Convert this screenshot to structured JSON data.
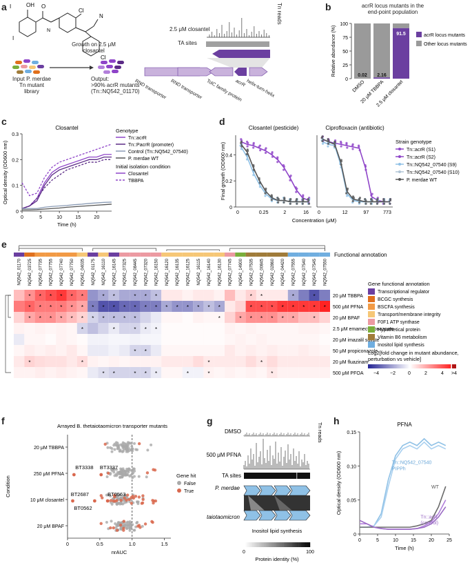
{
  "panels": {
    "a": "a",
    "b": "b",
    "c": "c",
    "d": "d",
    "e": "e",
    "f": "f",
    "g": "g",
    "h": "h"
  },
  "panel_a": {
    "growth_label_1": "Growth on 2.5 μM",
    "growth_label_2": "closantel",
    "input_1": "Input P. merdae",
    "input_2": "Tn mutant",
    "input_3": "library",
    "output_1": "Output:",
    "output_2": ">90% acrR mutants",
    "output_3": "(Tn::NQ542_01170)",
    "closantel_track": "2.5 μM closantel",
    "ta_sites": "TA sites",
    "tn_reads": "Tn reads",
    "genes": [
      "RND transporter",
      "RND transporter",
      "TolC family protein",
      "acrR",
      "helix-turn-helix"
    ]
  },
  "panel_b": {
    "title_1": "acrR locus mutants in the",
    "title_2": "end-point population",
    "ylabel": "Relative abundance (%)",
    "legend": [
      "acrR locus mutants",
      "Other locus mutants"
    ]
  },
  "panel_c": {
    "title": "Closantel",
    "xlabel": "Time (h)",
    "ylabel": "Optical density (OD600 nm)",
    "legend_genotype": "Genotype",
    "legend_items": [
      "Tn::acrR",
      "Tn::PacrR (promoter)",
      "Control (Tn::NQ542_07540)",
      "P. merdae WT"
    ],
    "legend_cond": "Initial isolation condition",
    "cond_items": [
      "Closantel",
      "TBBPA"
    ]
  },
  "panel_d": {
    "title_left": "Closantel (pesticide)",
    "title_right": "Ciprofloxacin (antibiotic)",
    "xlabel": "Concentration (μM)",
    "ylabel": "Final growth (OD600 nm)",
    "legend_title": "Strain genotype",
    "legend_items": [
      "Tn::acrR (S1)",
      "Tn::acrR (S2)",
      "Tn::NQ542_07540 (S9)",
      "Tn::NQ542_07540 (S10)",
      "P. merdae WT"
    ]
  },
  "panel_e": {
    "annotation_label": "Functional annotation",
    "columns": [
      "NQ542_01170",
      "NQ542_03725",
      "NQ542_07735",
      "NQ542_07755",
      "NQ542_07740",
      "NQ542_07750",
      "NQ542_04035",
      "NQ542_01175",
      "NQ542_16110",
      "NQ542_16145",
      "NQ542_07325",
      "NQ542_08445",
      "NQ542_07320",
      "NQ542_16150",
      "NQ542_16120",
      "NQ542_16135",
      "NQ542_16125",
      "NQ542_16115",
      "NQ542_16140",
      "NQ542_16130",
      "NQ542_07745",
      "NQ542_14900",
      "NQ542_07535",
      "NQ542_00845",
      "NQ542_02860",
      "NQ542_04420",
      "NQ542_07555",
      "NQ542_07540",
      "NQ542_07545",
      "NQ542_07550"
    ],
    "rows": [
      "20 μM TBBPA",
      "500 μM PFNA",
      "20 μM BPAF",
      "2.5 μM emamectin benzoate",
      "20 μM imazalil sulfate",
      "50 μM propiconazole",
      "20 μM fluazinam",
      "500 μM PFOA"
    ],
    "legend_title": "Gene functional annotation",
    "categories": [
      "Transcriptional regulator",
      "BCGC synthesis",
      "BSCFA synthesis",
      "Transport/membrane integrity",
      "F0F1 ATP synthase",
      "Hypothetical protein",
      "Vitamin B6 metabolism",
      "Inositol lipid synthesis"
    ],
    "colorbar_title_1": "Log2[fold change in mutant abundance,",
    "colorbar_title_2": "perturbation vs vehicle]",
    "colorbar_ticks": [
      "−4",
      "−2",
      "0",
      "2",
      "4",
      ">4"
    ]
  },
  "panel_f": {
    "title": "Arrayed B. thetaiotaomicron transporter mutants",
    "xlabel": "nrAUC",
    "ylabel": "Condition",
    "legend_title": "Gene hit",
    "legend_items": [
      "False",
      "True"
    ],
    "annotations": [
      "BT3338",
      "BT3337",
      "BT2687",
      "BT0563",
      "BT0562"
    ]
  },
  "panel_g": {
    "dmso": "DMSO",
    "pfna": "500 μM PFNA",
    "ta_sites": "TA sites",
    "org1": "P. merdae",
    "org2": "B. thetaiotaomicron",
    "pathway": "Inositol lipid synthesis",
    "tn_reads": "Tn reads",
    "colorbar_title": "Protein identity (%)",
    "colorbar_ticks": [
      "0",
      "100"
    ]
  },
  "panel_h": {
    "title": "PFNA",
    "xlabel": "Time (h)",
    "ylabel": "Optical density (OD600 nm)",
    "labels": [
      "Tn::NQ542_07540",
      "PIPPh",
      "WT",
      "Tn::acR",
      "(control)"
    ]
  },
  "chart_data": [
    {
      "type": "bar",
      "id": "b",
      "title": "acrR locus mutants in the end-point population",
      "categories": [
        "DMSO",
        "20 μM TBBPA",
        "2.5 μM closantel"
      ],
      "series": [
        {
          "name": "acrR locus mutants",
          "values": [
            0.02,
            2.16,
            91.5
          ]
        },
        {
          "name": "Other locus mutants",
          "values": [
            99.98,
            97.84,
            8.5
          ]
        }
      ],
      "value_labels": [
        "0.02",
        "2.16",
        "91.5"
      ],
      "ylabel": "Relative abundance (%)",
      "ylim": [
        0,
        100
      ],
      "yticks": [
        "0",
        "25",
        "50",
        "75",
        "100"
      ]
    },
    {
      "type": "line",
      "id": "c",
      "title": "Closantel",
      "xlabel": "Time (h)",
      "ylabel": "Optical density (OD600 nm)",
      "xlim": [
        0,
        24
      ],
      "ylim": [
        0,
        0.3
      ],
      "xticks": [
        "0",
        "5",
        "10",
        "15",
        "20"
      ],
      "yticks": [
        "0",
        "0.1",
        "0.2",
        "0.3"
      ],
      "x": [
        0,
        2,
        4,
        6,
        8,
        10,
        12,
        14,
        16,
        18,
        20,
        22,
        24
      ],
      "series": [
        {
          "name": "Tn::acrR (closantel)",
          "values": [
            0.01,
            0.02,
            0.05,
            0.11,
            0.15,
            0.17,
            0.18,
            0.19,
            0.2,
            0.21,
            0.21,
            0.22,
            0.22
          ]
        },
        {
          "name": "Tn::acrR (TBBPA)",
          "values": [
            0.11,
            0.06,
            0.07,
            0.13,
            0.17,
            0.19,
            0.2,
            0.21,
            0.22,
            0.23,
            0.24,
            0.25,
            0.26
          ]
        },
        {
          "name": "Tn::PacrR (closantel)",
          "values": [
            0.01,
            0.02,
            0.04,
            0.1,
            0.14,
            0.16,
            0.17,
            0.18,
            0.19,
            0.2,
            0.2,
            0.21,
            0.21
          ]
        },
        {
          "name": "Tn::PacrR (TBBPA)",
          "values": [
            0.01,
            0.02,
            0.05,
            0.09,
            0.12,
            0.14,
            0.16,
            0.17,
            0.18,
            0.19,
            0.19,
            0.2,
            0.2
          ]
        },
        {
          "name": "Control",
          "values": [
            0.01,
            0.01,
            0.01,
            0.015,
            0.018,
            0.02,
            0.022,
            0.025,
            0.027,
            0.03,
            0.032,
            0.034,
            0.035
          ]
        },
        {
          "name": "WT",
          "values": [
            0.005,
            0.005,
            0.006,
            0.008,
            0.01,
            0.012,
            0.015,
            0.017,
            0.019,
            0.021,
            0.023,
            0.025,
            0.027
          ]
        }
      ]
    },
    {
      "type": "line",
      "id": "d",
      "title": "Closantel (pesticide) / Ciprofloxacin (antibiotic)",
      "xlabel": "Concentration (μM)",
      "ylabel": "Final growth (OD600 nm)",
      "ylim": [
        0,
        0.5
      ],
      "yticks": [
        "0",
        "0.2",
        "0.4"
      ],
      "left_xticks": [
        "0",
        "0.25",
        "2",
        "16"
      ],
      "right_xticks": [
        "0",
        "12",
        "97",
        "773"
      ],
      "left_x_log2_steps": [
        0,
        1,
        2,
        3,
        4,
        5,
        6,
        7,
        8,
        9,
        10,
        11
      ],
      "series_left": [
        {
          "name": "Tn::acrR",
          "values": [
            0.5,
            0.48,
            0.47,
            0.45,
            0.43,
            0.4,
            0.36,
            0.3,
            0.22,
            0.13,
            0.07,
            0.05
          ]
        },
        {
          "name": "Tn::NQ542_07540",
          "values": [
            0.46,
            0.38,
            0.26,
            0.17,
            0.1,
            0.06,
            0.05,
            0.05,
            0.04,
            0.04,
            0.04,
            0.04
          ]
        },
        {
          "name": "WT",
          "values": [
            0.48,
            0.42,
            0.3,
            0.2,
            0.12,
            0.07,
            0.05,
            0.05,
            0.04,
            0.04,
            0.04,
            0.04
          ]
        }
      ],
      "series_right": [
        {
          "name": "Tn::acrR",
          "values": [
            0.52,
            0.5,
            0.49,
            0.48,
            0.47,
            0.46,
            0.45,
            0.3,
            0.08,
            0.05,
            0.04,
            0.04
          ]
        },
        {
          "name": "Tn::NQ542_07540",
          "values": [
            0.5,
            0.48,
            0.47,
            0.32,
            0.1,
            0.05,
            0.04,
            0.04,
            0.04,
            0.04,
            0.04,
            0.04
          ]
        },
        {
          "name": "WT",
          "values": [
            0.52,
            0.5,
            0.48,
            0.34,
            0.12,
            0.06,
            0.05,
            0.04,
            0.04,
            0.04,
            0.04,
            0.04
          ]
        }
      ]
    },
    {
      "type": "heatmap",
      "id": "e",
      "rows": [
        "20 μM TBBPA",
        "500 μM PFNA",
        "20 μM BPAF",
        "2.5 μM emamectin benzoate",
        "20 μM imazalil sulfate",
        "50 μM propiconazole",
        "20 μM fluazinam",
        "500 μM PFOA"
      ],
      "col_categories": [
        0,
        1,
        2,
        2,
        2,
        2,
        3,
        0,
        3,
        0,
        4,
        4,
        4,
        4,
        3,
        3,
        3,
        3,
        3,
        3,
        4,
        5,
        6,
        6,
        6,
        6,
        7,
        7,
        7,
        7
      ],
      "values": [
        [
          1.5,
          2.5,
          3.5,
          4,
          4.5,
          3.5,
          3,
          -2.5,
          -2,
          -1.5,
          -2,
          -2,
          -2,
          -1.5,
          0.5,
          0.5,
          0.3,
          0.5,
          0.5,
          0.3,
          1.5,
          0.5,
          1,
          0.5,
          0.5,
          0.5,
          -2,
          -3,
          -4,
          -3
        ],
        [
          3,
          3.5,
          3,
          3,
          3,
          2.5,
          2,
          -3,
          -4,
          -4,
          -3.5,
          -3.5,
          -3,
          -3,
          -2,
          -2.5,
          -2.5,
          -2,
          -1.5,
          -2,
          0.5,
          1,
          4,
          4,
          4,
          4.5,
          4.5,
          4.5,
          4.5,
          5
        ],
        [
          1,
          2,
          2.5,
          2.5,
          2,
          1.5,
          1,
          -1,
          -1.5,
          -1.5,
          -1.5,
          -1.5,
          -1,
          -0.5,
          0.2,
          0.2,
          0.1,
          0.3,
          0.2,
          0.2,
          1,
          2,
          2.5,
          2.5,
          2.5,
          2,
          2,
          1.5,
          1.5,
          1
        ],
        [
          0.3,
          0.2,
          0.3,
          0.2,
          0.3,
          0.2,
          -1,
          -1.5,
          -1,
          -0.5,
          -1,
          -1,
          -0.5,
          -0.3,
          0.1,
          0.1,
          0.1,
          0.1,
          0.1,
          0.1,
          0.3,
          0.2,
          0.3,
          0.2,
          0.2,
          0.2,
          0.2,
          0.3,
          0.3,
          0.2
        ],
        [
          -0.5,
          0.2,
          0.2,
          0.1,
          0.3,
          0.2,
          0.1,
          -0.3,
          -0.3,
          -0.2,
          -0.2,
          -0.3,
          -0.2,
          -0.2,
          0.1,
          0.1,
          0.1,
          0.1,
          0.1,
          0.1,
          0.2,
          0.3,
          0.2,
          0.3,
          0.2,
          0.2,
          0.2,
          0.2,
          0.2,
          0.1
        ],
        [
          0.2,
          0.4,
          0.3,
          0.4,
          0.3,
          0.5,
          0.2,
          -0.5,
          -0.5,
          -0.3,
          -0.5,
          -1,
          -1,
          -0.5,
          0.2,
          0.2,
          0.2,
          0.2,
          0.2,
          0.2,
          0.5,
          0.3,
          0.4,
          0.3,
          0.4,
          0.3,
          0.3,
          0.4,
          0.3,
          0.2
        ],
        [
          0.5,
          1,
          0.8,
          0.7,
          0.7,
          0.5,
          0.8,
          0.3,
          0.2,
          0.3,
          0.2,
          0.3,
          0.3,
          0.3,
          0.5,
          0.5,
          0.5,
          0.8,
          0.5,
          0.5,
          0.5,
          0.5,
          0.8,
          0.5,
          0.8,
          0.5,
          0.5,
          0.5,
          0.5,
          0.5
        ],
        [
          0.3,
          0.3,
          0.4,
          0.3,
          0.4,
          0.3,
          0.2,
          -0.5,
          -0.8,
          -1,
          -1,
          -1,
          -1,
          -0.5,
          0.2,
          0.2,
          -0.3,
          -0.3,
          0.3,
          0.2,
          0.3,
          0.2,
          0.3,
          0.2,
          0.5,
          0.3,
          0.3,
          0.3,
          0.3,
          0.3
        ]
      ],
      "significant": [
        [
          1,
          2,
          3,
          4,
          5,
          6,
          8,
          9,
          11,
          12,
          13,
          22,
          23,
          26,
          28
        ],
        [
          1,
          2,
          3,
          4,
          5,
          6,
          7,
          8,
          9,
          10,
          11,
          12,
          13,
          14,
          15,
          16,
          17,
          18,
          19,
          22,
          23,
          24,
          25,
          26,
          27,
          28,
          29
        ],
        [
          1,
          2,
          3,
          4,
          5,
          6,
          7,
          8,
          9,
          10,
          11,
          19,
          21,
          22,
          23,
          24,
          25,
          26,
          28
        ],
        [
          6,
          9,
          11,
          12,
          13
        ],
        [],
        [
          11,
          12
        ],
        [
          1,
          6,
          18,
          23
        ],
        [
          8,
          9,
          11,
          12,
          13,
          16,
          18,
          24
        ]
      ],
      "colorbar_range": [
        -5,
        5
      ]
    },
    {
      "type": "scatter",
      "id": "f",
      "title": "Arrayed B. thetaiotaomicron transporter mutants",
      "xlabel": "nrAUC",
      "ylabel": "Condition",
      "categories": [
        "20 μM TBBPA",
        "250 μM PFNA",
        "10 μM closantel",
        "20 μM BPAF"
      ],
      "xlim": [
        0,
        1.6
      ],
      "xticks": [
        "0",
        "0.5",
        "1.0",
        "1.5"
      ],
      "hits": [
        {
          "label": "BT3338",
          "condition": "250 μM PFNA",
          "x": 0.1
        },
        {
          "label": "BT3337",
          "condition": "250 μM PFNA",
          "x": 0.52
        },
        {
          "label": "BT2687",
          "condition": "10 μM closantel",
          "x": 0.08
        },
        {
          "label": "BT0563",
          "condition": "10 μM closantel",
          "x": 0.62
        },
        {
          "label": "BT0562",
          "condition": "10 μM closantel",
          "x": 0.42
        }
      ]
    },
    {
      "type": "line",
      "id": "h",
      "title": "PFNA",
      "xlabel": "Time (h)",
      "ylabel": "Optical density (OD600 nm)",
      "xlim": [
        0,
        25
      ],
      "ylim": [
        0,
        0.15
      ],
      "xticks": [
        "0",
        "5",
        "10",
        "15",
        "20",
        "25"
      ],
      "yticks": [
        "0",
        "0.05",
        "0.10",
        "0.15"
      ],
      "x": [
        0,
        2,
        4,
        6,
        8,
        10,
        12,
        14,
        16,
        18,
        20,
        22,
        24
      ],
      "series": [
        {
          "name": "Tn::NQ542_07540 a",
          "values": [
            0.01,
            0.01,
            0.012,
            0.03,
            0.08,
            0.115,
            0.13,
            0.135,
            0.13,
            0.14,
            0.13,
            0.135,
            0.13
          ]
        },
        {
          "name": "Tn::NQ542_07540 b",
          "values": [
            0.01,
            0.01,
            0.012,
            0.025,
            0.07,
            0.11,
            0.125,
            0.13,
            0.125,
            0.135,
            0.125,
            0.13,
            0.125
          ]
        },
        {
          "name": "WT",
          "values": [
            0.01,
            0.01,
            0.01,
            0.01,
            0.01,
            0.01,
            0.01,
            0.01,
            0.012,
            0.015,
            0.02,
            0.04,
            0.07
          ]
        },
        {
          "name": "Tn::acR a",
          "values": [
            0.015,
            0.015,
            0.01,
            0.008,
            0.007,
            0.007,
            0.007,
            0.007,
            0.008,
            0.012,
            0.018,
            0.03,
            0.05
          ]
        },
        {
          "name": "Tn::acR b",
          "values": [
            0.02,
            0.015,
            0.01,
            0.008,
            0.007,
            0.007,
            0.007,
            0.007,
            0.008,
            0.01,
            0.015,
            0.025,
            0.04
          ]
        }
      ]
    }
  ],
  "colors": {
    "purple": "#8e44c8",
    "dark_purple": "#5b2a86",
    "light_purple": "#b27fdb",
    "grey": "#9a9a9a",
    "light_blue": "#8fc1e6",
    "red_point": "#d9684e",
    "categories": [
      "#6b3fa0",
      "#e0701d",
      "#f29a45",
      "#f6c777",
      "#ec9aa2",
      "#7aae3b",
      "#a07c3a",
      "#70aee0"
    ]
  }
}
